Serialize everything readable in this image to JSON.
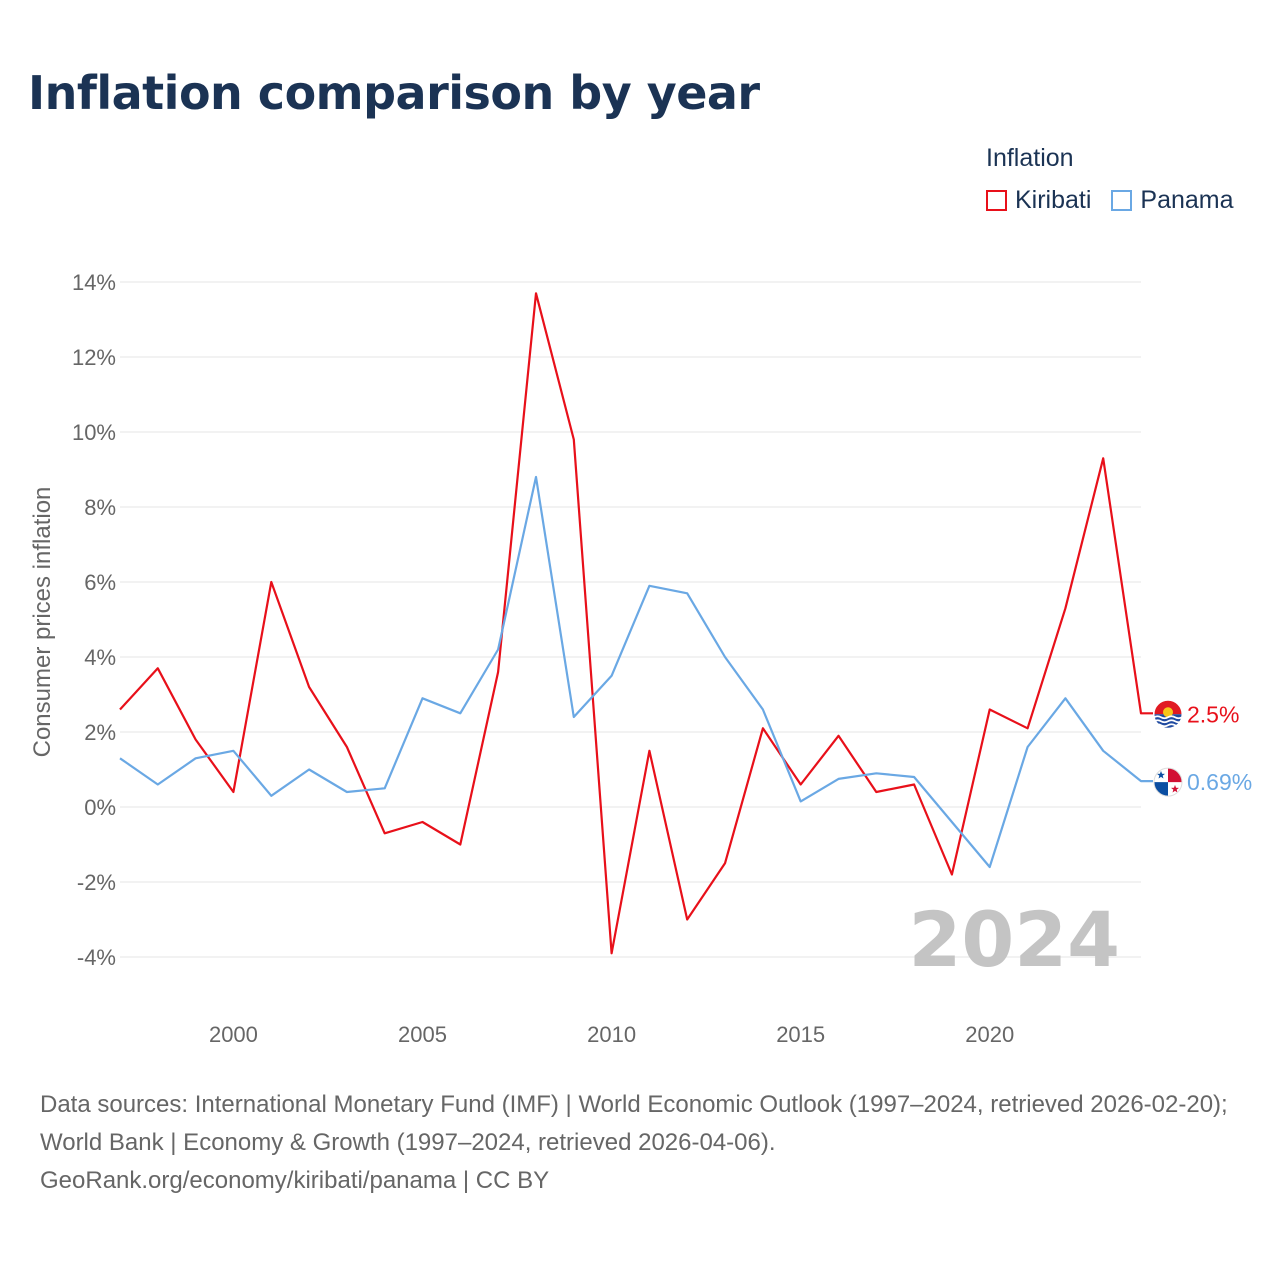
{
  "title": "Inflation comparison by year",
  "legend": {
    "title": "Inflation",
    "items": [
      {
        "label": "Kiribati",
        "color": "#e8101a"
      },
      {
        "label": "Panama",
        "color": "#6aa8e4"
      }
    ]
  },
  "watermark_year": "2024",
  "source": {
    "line1": "Data sources: International Monetary Fund (IMF) | World Economic Outlook (1997–2024, retrieved 2026-02-20); World Bank | Economy & Growth (1997–2024, retrieved 2026-04-06).",
    "line2": "GeoRank.org/economy/kiribati/panama | CC BY"
  },
  "chart_data": {
    "type": "line",
    "title": "Inflation comparison by year",
    "xlabel": "",
    "ylabel": "Consumer prices inflation",
    "x": [
      1997,
      1998,
      1999,
      2000,
      2001,
      2002,
      2003,
      2004,
      2005,
      2006,
      2007,
      2008,
      2009,
      2010,
      2011,
      2012,
      2013,
      2014,
      2015,
      2016,
      2017,
      2018,
      2019,
      2020,
      2021,
      2022,
      2023,
      2024
    ],
    "xlim": [
      1997,
      2024
    ],
    "ylim": [
      -4,
      14
    ],
    "x_ticks": [
      2000,
      2005,
      2010,
      2015,
      2020
    ],
    "y_ticks": [
      -4,
      -2,
      0,
      2,
      4,
      6,
      8,
      10,
      12,
      14
    ],
    "y_tick_labels": [
      "-4%",
      "-2%",
      "0%",
      "2%",
      "4%",
      "6%",
      "8%",
      "10%",
      "12%",
      "14%"
    ],
    "grid": true,
    "legend_position": "top-right",
    "series": [
      {
        "name": "Kiribati",
        "color": "#e8101a",
        "end_label": "2.5%",
        "values": [
          2.6,
          3.7,
          1.8,
          0.4,
          6.0,
          3.2,
          1.6,
          -0.7,
          -0.4,
          -1.0,
          3.6,
          13.7,
          9.8,
          -3.9,
          1.5,
          -3.0,
          -1.5,
          2.1,
          0.6,
          1.9,
          0.4,
          0.6,
          -1.8,
          2.6,
          2.1,
          5.3,
          9.3,
          2.5
        ]
      },
      {
        "name": "Panama",
        "color": "#6aa8e4",
        "end_label": "0.69%",
        "values": [
          1.3,
          0.6,
          1.3,
          1.5,
          0.3,
          1.0,
          0.4,
          0.5,
          2.9,
          2.5,
          4.2,
          8.8,
          2.4,
          3.5,
          5.9,
          5.7,
          4.0,
          2.6,
          0.15,
          0.75,
          0.9,
          0.8,
          -0.4,
          -1.6,
          1.6,
          2.9,
          1.5,
          0.69
        ]
      }
    ]
  }
}
